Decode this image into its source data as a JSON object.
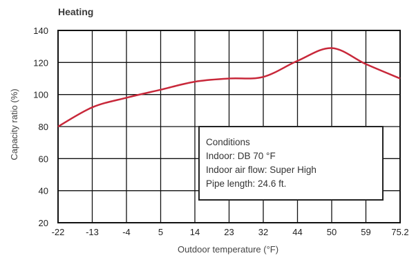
{
  "chart_data": {
    "type": "line",
    "title": "Heating",
    "xlabel": "Outdoor temperature (°F)",
    "ylabel": "Capacity ratio (%)",
    "x_ticks": [
      "-22",
      "-13",
      "-4",
      "5",
      "14",
      "23",
      "32",
      "44",
      "50",
      "59",
      "75.2"
    ],
    "y_ticks": [
      20,
      40,
      60,
      80,
      100,
      120,
      140
    ],
    "ylim": [
      20,
      140
    ],
    "grid": true,
    "series": [
      {
        "color": "#c8283a",
        "x": [
          "-22",
          "-13",
          "-4",
          "5",
          "14",
          "23",
          "32",
          "44",
          "50",
          "59",
          "75.2"
        ],
        "values": [
          80,
          92,
          98,
          103,
          108,
          110,
          111,
          121,
          129,
          119,
          110
        ]
      }
    ],
    "annotation": {
      "lines": [
        "Conditions",
        "Indoor: DB 70 °F",
        "Indoor air flow: Super High",
        "Pipe length: 24.6 ft."
      ]
    }
  }
}
